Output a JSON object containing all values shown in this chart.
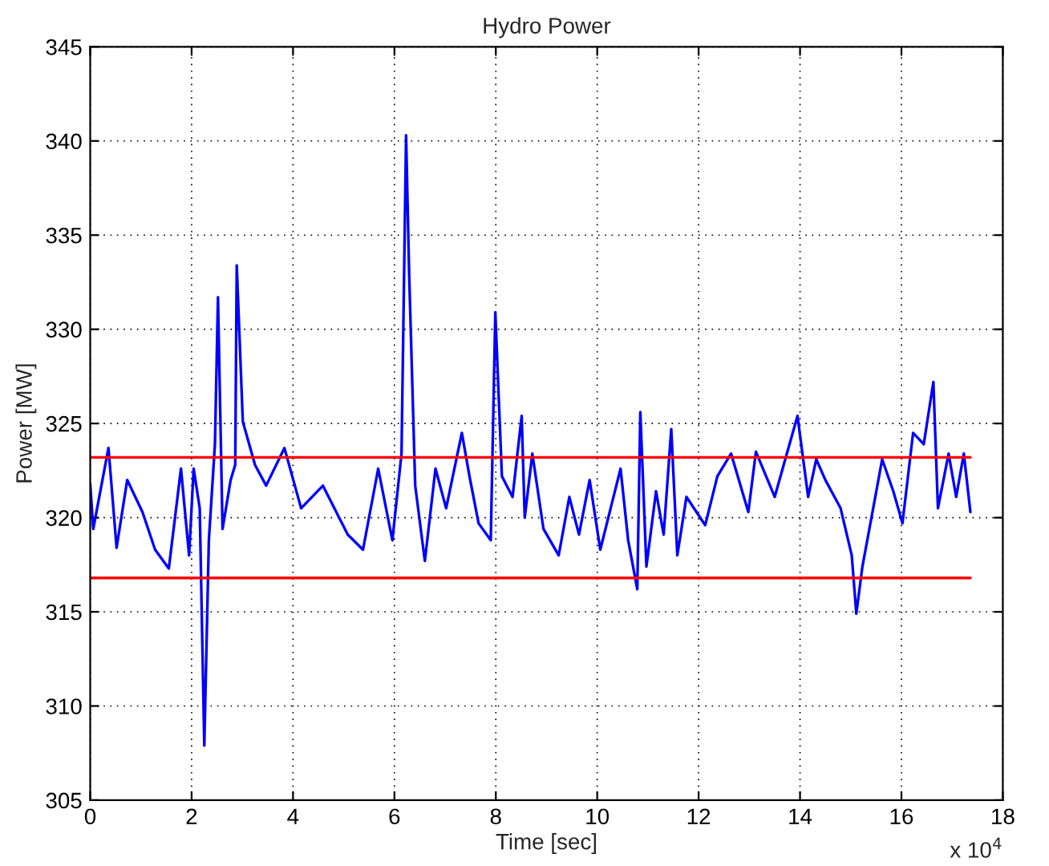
{
  "chart_data": {
    "type": "line",
    "title": "Hydro Power",
    "xlabel": "Time [sec]",
    "ylabel": "Power [MW]",
    "annotations": [
      "x 10$^{4}$"
    ],
    "xlim": [
      0,
      18
    ],
    "xticks": [
      0,
      2,
      4,
      6,
      8,
      10,
      12,
      14,
      16,
      18
    ],
    "ylim": [
      305,
      345
    ],
    "yticks": [
      305,
      310,
      315,
      320,
      325,
      330,
      335,
      340,
      345
    ],
    "grid": true,
    "line_style": "solid",
    "marker": "none",
    "series": [
      {
        "color": "#0000ff",
        "x": [
          0,
          0.06,
          0.36,
          0.52,
          0.73,
          1.03,
          1.28,
          1.55,
          1.79,
          1.95,
          2.04,
          2.16,
          2.25,
          2.34,
          2.46,
          2.52,
          2.61,
          2.77,
          2.86,
          2.89,
          3.01,
          3.25,
          3.47,
          3.83,
          4.16,
          4.59,
          5.08,
          5.38,
          5.68,
          5.96,
          6.14,
          6.23,
          6.29,
          6.41,
          6.6,
          6.81,
          7.02,
          7.33,
          7.48,
          7.66,
          7.9,
          7.99,
          8.12,
          8.33,
          8.51,
          8.57,
          8.72,
          8.94,
          9.24,
          9.45,
          9.64,
          9.85,
          10.06,
          10.46,
          10.61,
          10.79,
          10.85,
          10.97,
          11.16,
          11.31,
          11.46,
          11.58,
          11.76,
          12.13,
          12.37,
          12.64,
          12.98,
          13.13,
          13.5,
          13.74,
          13.95,
          14.16,
          14.32,
          14.5,
          14.8,
          15.02,
          15.11,
          15.23,
          15.47,
          15.62,
          15.84,
          16.02,
          16.23,
          16.44,
          16.63,
          16.72,
          16.93,
          17.08,
          17.23,
          17.36
        ],
        "values": [
          321.8,
          319.4,
          323.7,
          318.4,
          322.0,
          320.3,
          318.3,
          317.3,
          322.6,
          318.0,
          322.6,
          320.5,
          307.9,
          318.8,
          323.9,
          331.7,
          319.4,
          322.0,
          322.8,
          333.4,
          325.1,
          322.8,
          321.7,
          323.7,
          320.5,
          321.7,
          319.1,
          318.3,
          322.6,
          318.8,
          323.4,
          340.3,
          333.0,
          321.7,
          317.7,
          322.6,
          320.5,
          324.5,
          322.2,
          319.7,
          318.8,
          330.9,
          322.2,
          321.1,
          325.4,
          320.0,
          323.4,
          319.4,
          318.0,
          321.1,
          319.1,
          322.0,
          318.3,
          322.6,
          318.8,
          316.2,
          325.6,
          317.4,
          321.4,
          319.1,
          324.7,
          318.0,
          321.1,
          319.6,
          322.2,
          323.4,
          320.3,
          323.5,
          321.1,
          323.4,
          325.4,
          321.1,
          323.1,
          322.0,
          320.5,
          318.0,
          314.9,
          317.4,
          320.9,
          323.1,
          321.4,
          319.7,
          324.5,
          323.9,
          327.2,
          320.5,
          323.4,
          321.1,
          323.4,
          320.3
        ]
      },
      {
        "color": "#ff0000",
        "x": [
          0,
          17.36
        ],
        "values": [
          323.2,
          323.2
        ]
      },
      {
        "color": "#ff0000",
        "x": [
          0,
          17.36
        ],
        "values": [
          316.8,
          316.8
        ]
      }
    ]
  }
}
